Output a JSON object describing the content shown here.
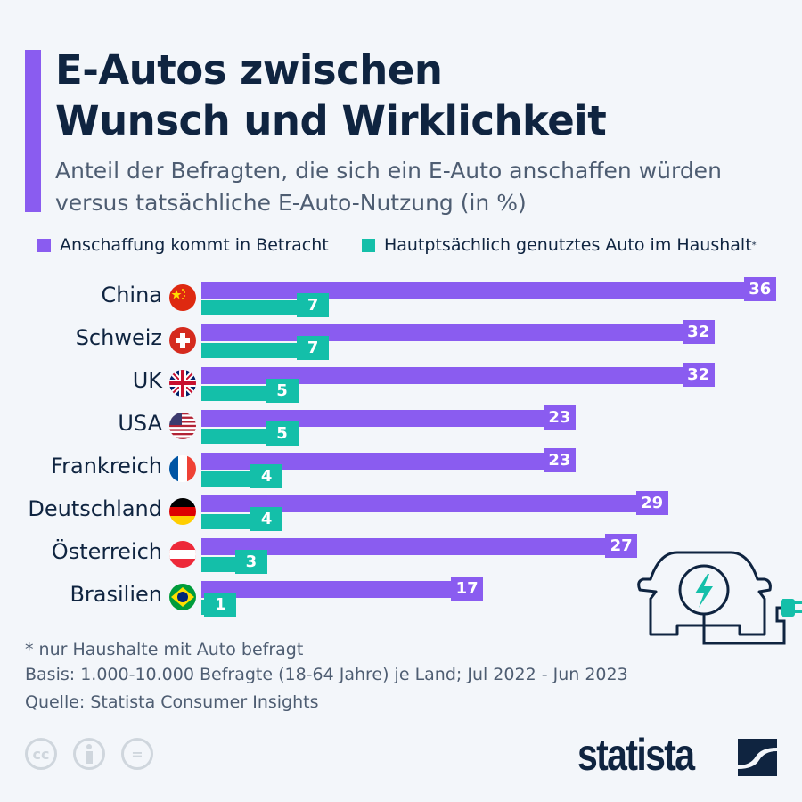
{
  "title_line1": "E-Autos zwischen",
  "title_line2": "Wunsch und Wirklichkeit",
  "subtitle_line1": "Anteil der Befragten, die sich ein E-Auto anschaffen würden",
  "subtitle_line2": "versus tatsächliche E-Auto-Nutzung (in %)",
  "colors": {
    "purple": "#8a5cf0",
    "teal": "#14bfa9",
    "title": "#0f2440"
  },
  "chart_data": {
    "type": "bar",
    "orientation": "horizontal",
    "categories": [
      "China",
      "Schweiz",
      "UK",
      "USA",
      "Frankreich",
      "Deutschland",
      "Österreich",
      "Brasilien"
    ],
    "series": [
      {
        "name": "Anschaffung kommt in Betracht",
        "values": [
          36,
          32,
          32,
          23,
          23,
          29,
          27,
          17
        ]
      },
      {
        "name": "Hautptsächlich genutztes Auto im Haushalt",
        "name_suffix": "*",
        "values": [
          7,
          7,
          5,
          5,
          4,
          4,
          3,
          1
        ]
      }
    ],
    "flags": [
      "china-flag",
      "switzerland-flag",
      "uk-flag",
      "usa-flag",
      "france-flag",
      "germany-flag",
      "austria-flag",
      "brazil-flag"
    ],
    "legend_position": "top",
    "grid": false,
    "data_labels": true
  },
  "footnote": "* nur Haushalte mit Auto befragt",
  "basis": "Basis: 1.000-10.000 Befragte (18-64 Jahre) je Land; Jul 2022 - Jun 2023",
  "source": "Quelle: Statista Consumer Insights",
  "license_icons": [
    "cc",
    "by",
    "nd"
  ],
  "cc_label": "cc",
  "nd_label": "=",
  "brand": "statista"
}
